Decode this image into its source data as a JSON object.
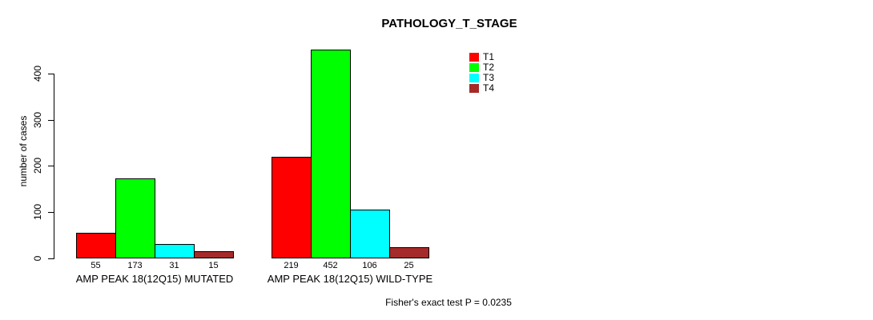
{
  "title": "PATHOLOGY_T_STAGE",
  "footer": "Fisher's exact test P = 0.0235",
  "chart_data": {
    "type": "bar",
    "title": "PATHOLOGY_T_STAGE",
    "xlabel": "",
    "ylabel": "number of cases",
    "ylim": [
      0,
      460
    ],
    "yticks": [
      0,
      100,
      200,
      300,
      400
    ],
    "grid": false,
    "legend_position": "top-right",
    "categories": [
      "AMP PEAK 18(12Q15) MUTATED",
      "AMP PEAK 18(12Q15) WILD-TYPE"
    ],
    "series": [
      {
        "name": "T1",
        "color": "#FF0000",
        "values": [
          55,
          219
        ]
      },
      {
        "name": "T2",
        "color": "#00FF00",
        "values": [
          173,
          452
        ]
      },
      {
        "name": "T3",
        "color": "#00FFFF",
        "values": [
          31,
          106
        ]
      },
      {
        "name": "T4",
        "color": "#A52A2A",
        "values": [
          15,
          25
        ]
      }
    ],
    "bar_value_labels": [
      [
        55,
        173,
        31,
        15
      ],
      [
        219,
        452,
        106,
        25
      ]
    ],
    "annotation": "Fisher's exact test P = 0.0235"
  }
}
